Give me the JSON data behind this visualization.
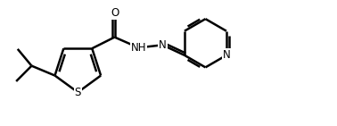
{
  "bg_color": "#ffffff",
  "line_color": "#000000",
  "line_width": 1.8,
  "figsize": [
    3.78,
    1.41
  ],
  "dpi": 100,
  "xlim": [
    0,
    10.0
  ],
  "ylim": [
    0.5,
    4.2
  ]
}
